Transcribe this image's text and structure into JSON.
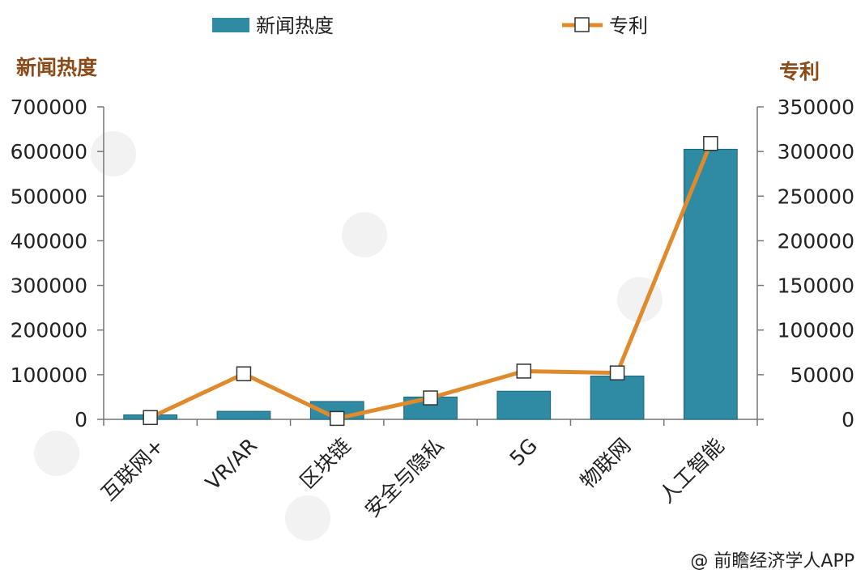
{
  "chart_data": {
    "type": "bar",
    "categories": [
      "互联网+",
      "VR/AR",
      "区块链",
      "安全与隐私",
      "5G",
      "物联网",
      "人工智能"
    ],
    "series": [
      {
        "name": "新闻热度",
        "type": "bar",
        "axis": "left",
        "values": [
          10000,
          18000,
          40000,
          50000,
          63000,
          97000,
          605000
        ]
      },
      {
        "name": "专利",
        "type": "line",
        "axis": "right",
        "values": [
          2000,
          51000,
          1000,
          24000,
          54000,
          52000,
          309000
        ]
      }
    ],
    "ylabel": "新闻热度",
    "y2label": "专利",
    "ylim": [
      0,
      700000
    ],
    "y2lim": [
      0,
      350000
    ],
    "yticks": [
      "0",
      "100000",
      "200000",
      "300000",
      "400000",
      "500000",
      "600000",
      "700000"
    ],
    "y2ticks": [
      "0",
      "50000",
      "100000",
      "150000",
      "200000",
      "250000",
      "300000",
      "350000"
    ],
    "legend_position": "top",
    "grid": false,
    "colors": {
      "bar": "#2f8aa3",
      "bar_edge": "#1d6478",
      "line": "#e08a2e",
      "marker_fill": "#ffffff",
      "axis_title": "#8b4a17"
    }
  },
  "credit": "@ 前瞻经济学人APP"
}
